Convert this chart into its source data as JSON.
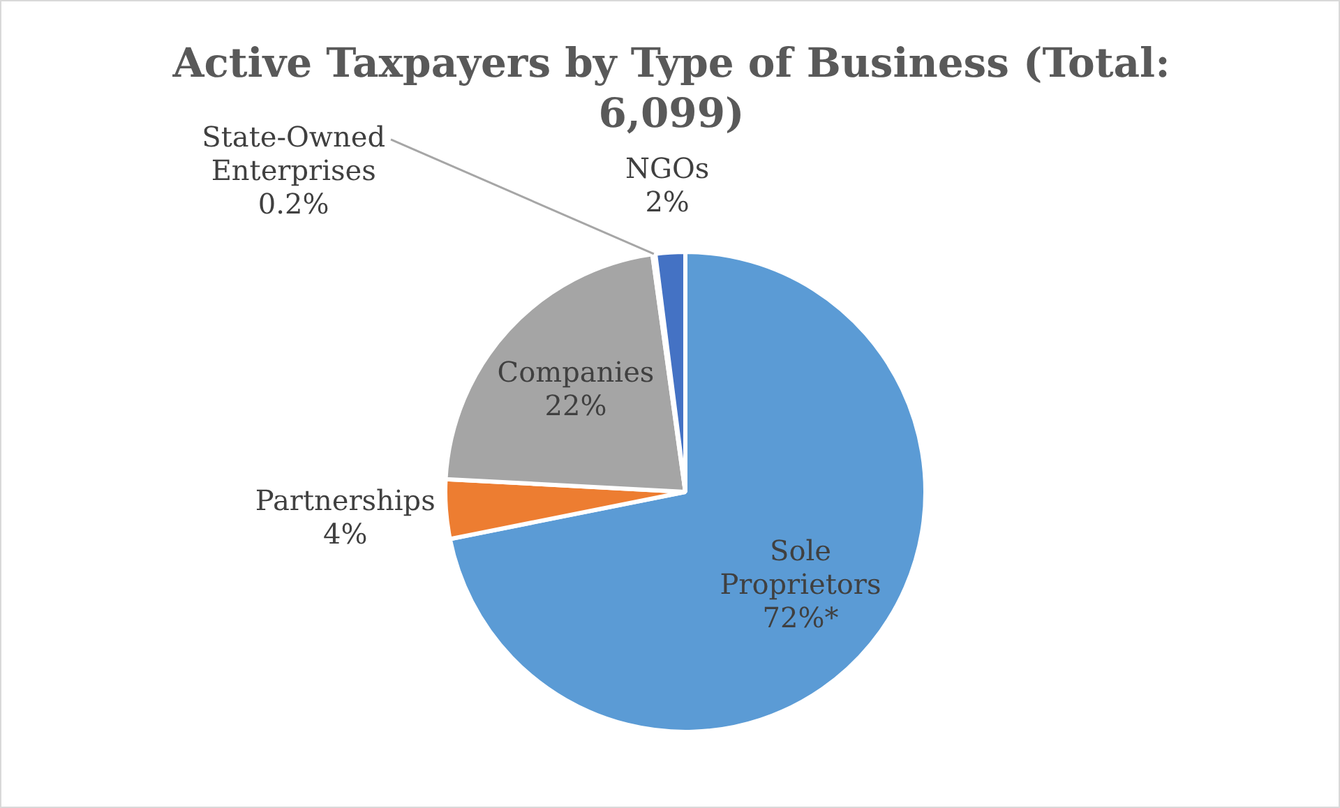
{
  "chart_data": {
    "type": "pie",
    "title": "Active Taxpayers by Type of Business (Total: 6,099)",
    "categories": [
      "Sole Proprietors",
      "Partnerships",
      "Companies",
      "State-Owned Enterprises",
      "NGOs"
    ],
    "values": [
      72,
      4,
      22,
      0.2,
      2
    ],
    "value_labels": [
      "72%*",
      "4%",
      "22%",
      "0.2%",
      "2%"
    ],
    "colors": [
      "#5b9bd5",
      "#ed7d31",
      "#a5a5a5",
      "#ffc000",
      "#4472c4"
    ],
    "legend": false
  }
}
